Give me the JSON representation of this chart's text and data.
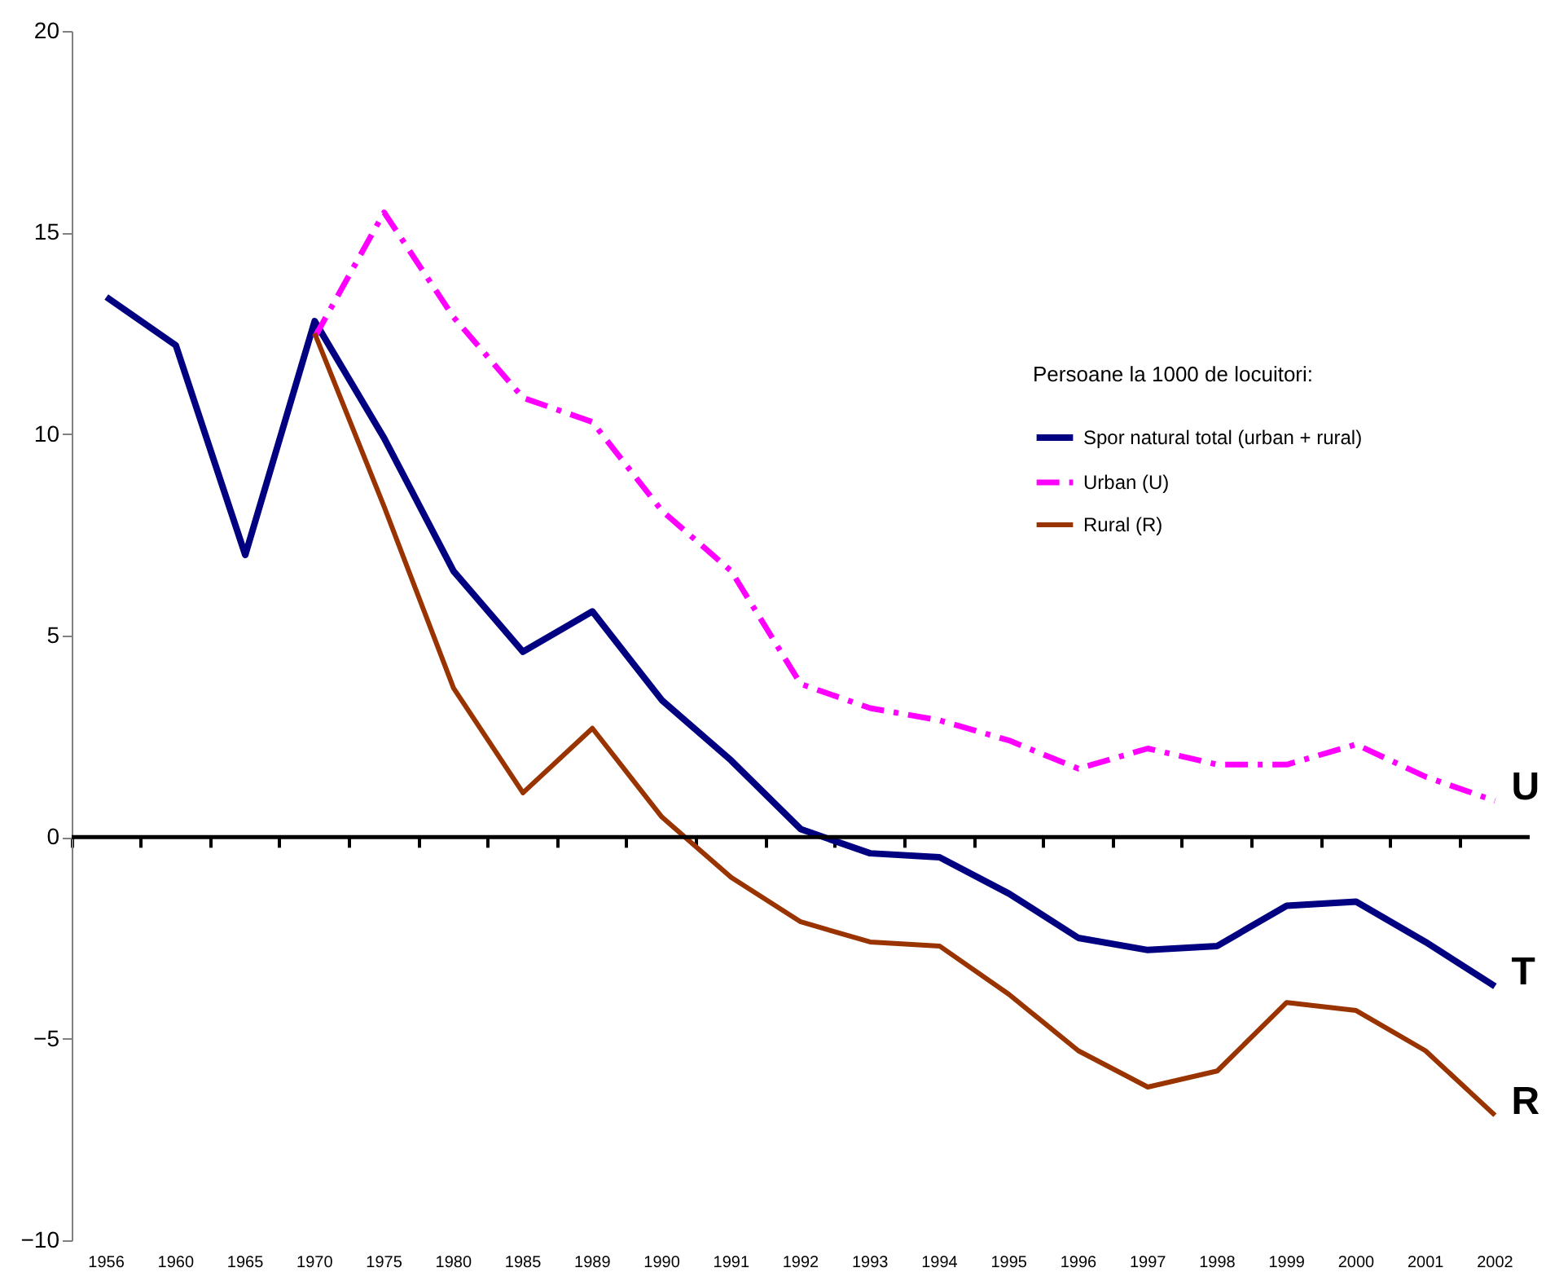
{
  "chart_data": {
    "type": "line",
    "legend_title": "Persoane la 1000 de locuitori:",
    "categories": [
      "1956",
      "1960",
      "1965",
      "1970",
      "1975",
      "1980",
      "1985",
      "1989",
      "1990",
      "1991",
      "1992",
      "1993",
      "1994",
      "1995",
      "1996",
      "1997",
      "1998",
      "1999",
      "2000",
      "2001",
      "2002"
    ],
    "series": [
      {
        "name": "Spor natural total (urban + rural)",
        "color": "#000080",
        "line_style": "solid",
        "values": [
          13.4,
          12.2,
          7.0,
          12.8,
          9.9,
          6.6,
          4.6,
          5.6,
          3.4,
          1.9,
          0.2,
          -0.4,
          -0.5,
          -1.4,
          -2.5,
          -2.8,
          -2.7,
          -1.7,
          -1.6,
          -2.6,
          -3.7
        ]
      },
      {
        "name": "Urban (U)",
        "color": "#ff00ff",
        "line_style": "dashed",
        "values": [
          null,
          null,
          null,
          12.4,
          15.5,
          12.9,
          10.9,
          10.3,
          8.1,
          6.6,
          3.8,
          3.2,
          2.9,
          2.4,
          1.7,
          2.2,
          1.8,
          1.8,
          2.3,
          1.5,
          0.9
        ]
      },
      {
        "name": "Rural (R)",
        "color": "#993300",
        "line_style": "solid",
        "values": [
          null,
          null,
          null,
          12.5,
          8.2,
          3.7,
          1.1,
          2.7,
          0.5,
          -1.0,
          -2.1,
          -2.6,
          -2.7,
          -3.9,
          -5.3,
          -6.2,
          -5.8,
          -4.1,
          -4.3,
          -5.3,
          -6.9
        ]
      }
    ],
    "annotations": [
      {
        "text": "U",
        "x": "2002",
        "y": 0.9
      },
      {
        "text": "T",
        "x": "2002",
        "y": -3.7
      },
      {
        "text": "R",
        "x": "2002",
        "y": -6.9
      }
    ],
    "ylim": [
      -10,
      20
    ],
    "yticks": [
      -10,
      -5,
      0,
      5,
      10,
      15,
      20
    ],
    "ref_lines": [
      {
        "axis": "y",
        "value": 0,
        "color": "#000000"
      }
    ],
    "grid": false,
    "legend": "top right",
    "marker": "none"
  }
}
